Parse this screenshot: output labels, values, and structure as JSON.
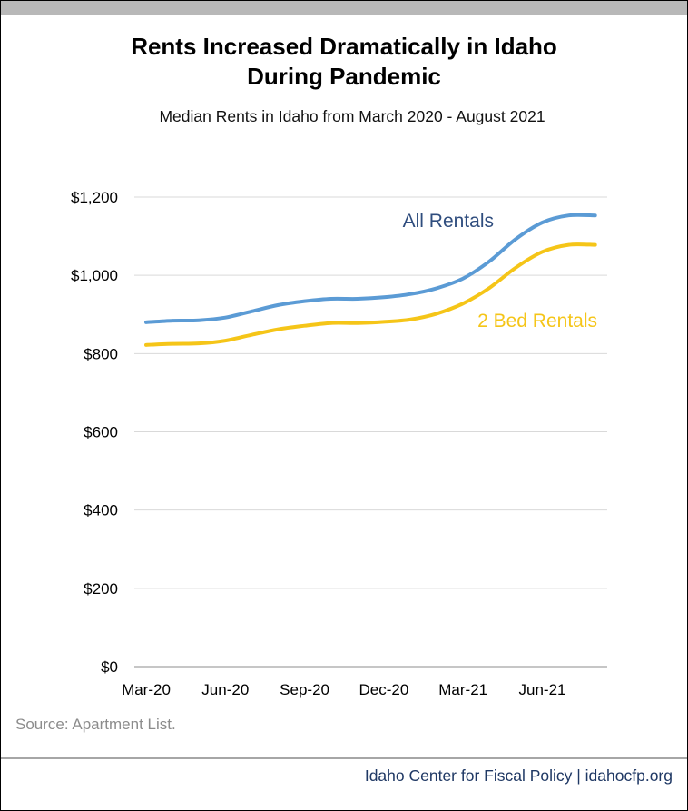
{
  "title_line1": "Rents Increased Dramatically in Idaho",
  "title_line2": "During Pandemic",
  "subtitle": "Median Rents in Idaho from March 2020 - August 2021",
  "source": "Source: Apartment List.",
  "footer": "Idaho Center for Fiscal Policy | idahocfp.org",
  "chart_data": {
    "type": "line",
    "categories": [
      "Mar-20",
      "Apr-20",
      "May-20",
      "Jun-20",
      "Jul-20",
      "Aug-20",
      "Sep-20",
      "Oct-20",
      "Nov-20",
      "Dec-20",
      "Jan-21",
      "Feb-21",
      "Mar-21",
      "Apr-21",
      "May-21",
      "Jun-21",
      "Jul-21",
      "Aug-21"
    ],
    "xtick_labels": [
      "Mar-20",
      "Jun-20",
      "Sep-20",
      "Dec-20",
      "Mar-21",
      "Jun-21"
    ],
    "ytick_labels": [
      "$0",
      "$200",
      "$400",
      "$600",
      "$800",
      "$1,000",
      "$1,200"
    ],
    "ylim": [
      0,
      1200
    ],
    "grid": true,
    "legend": "inline labels",
    "series": [
      {
        "name": "All Rentals",
        "color": "#5b9bd5",
        "label_color": "#2f4d7e",
        "values": [
          880,
          884,
          885,
          892,
          908,
          924,
          934,
          940,
          940,
          944,
          952,
          967,
          992,
          1036,
          1093,
          1135,
          1153,
          1153
        ]
      },
      {
        "name": "2 Bed Rentals",
        "color": "#f5c518",
        "label_color": "#f5c518",
        "values": [
          822,
          825,
          826,
          833,
          848,
          862,
          871,
          878,
          878,
          881,
          887,
          902,
          928,
          968,
          1020,
          1060,
          1078,
          1078
        ]
      }
    ]
  }
}
